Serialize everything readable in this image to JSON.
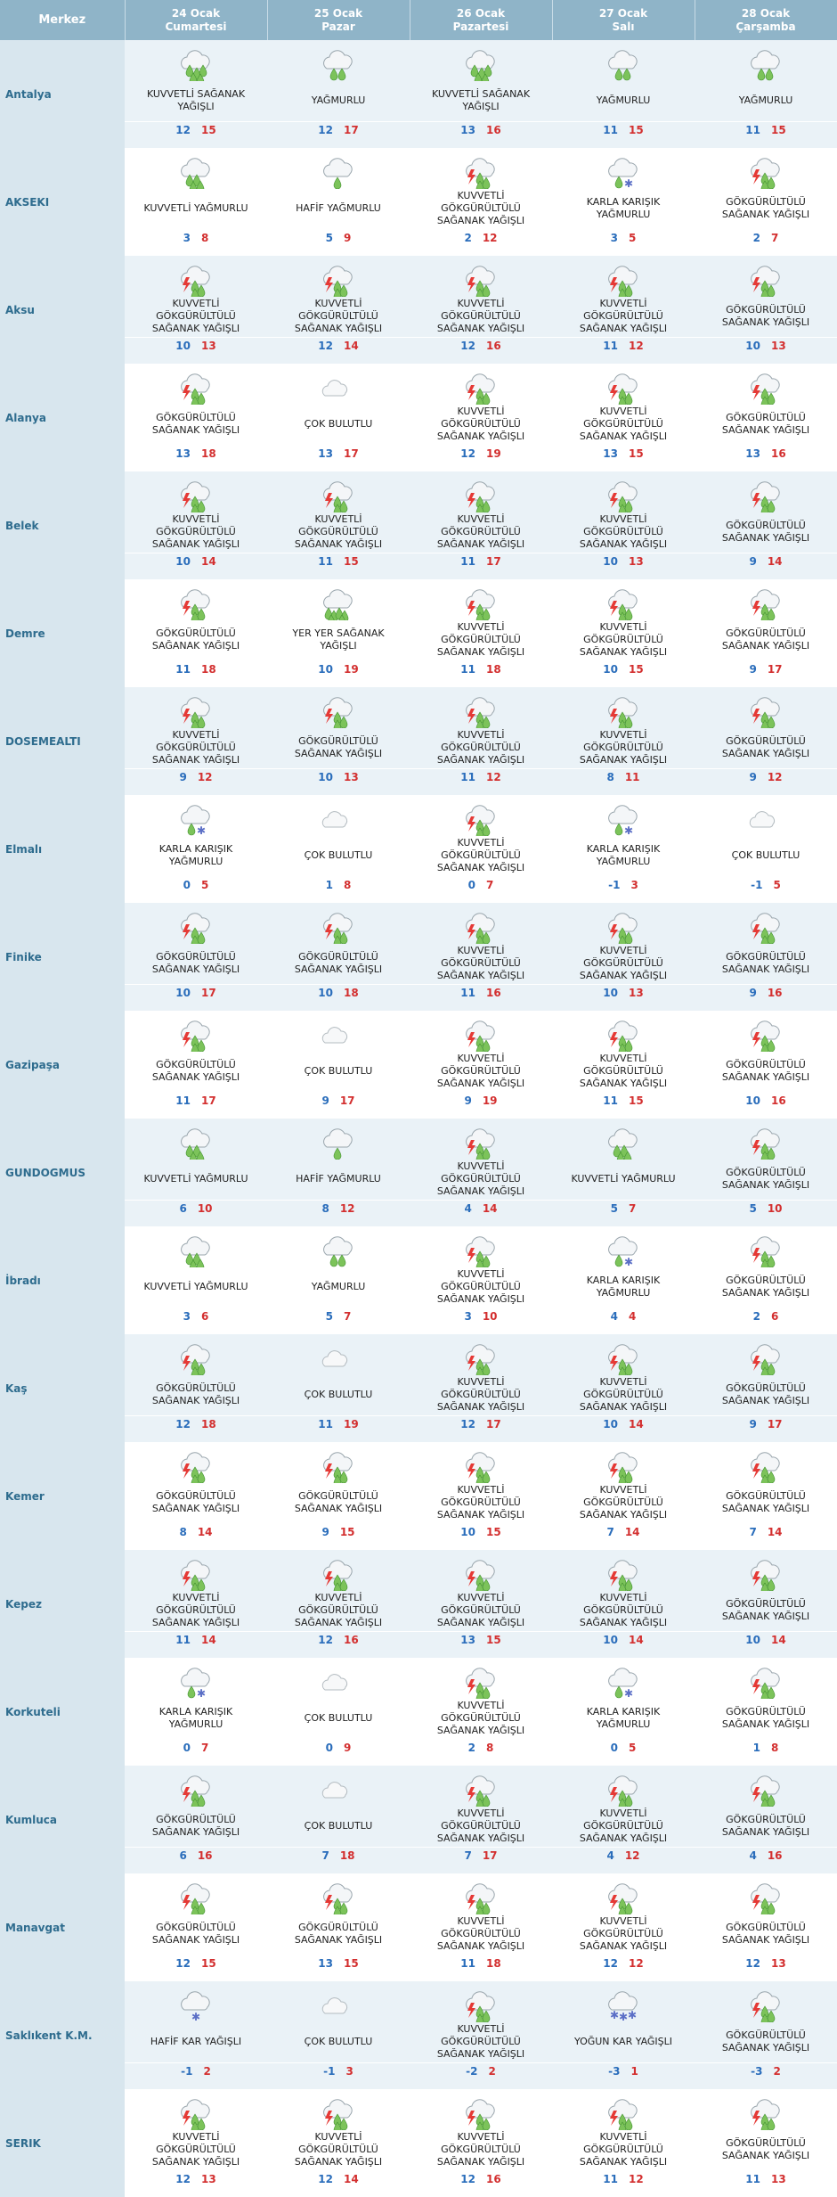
{
  "header": {
    "merkez": "Merkez",
    "days": [
      {
        "date": "24 Ocak",
        "weekday": "Cumartesi"
      },
      {
        "date": "25 Ocak",
        "weekday": "Pazar"
      },
      {
        "date": "26 Ocak",
        "weekday": "Pazartesi"
      },
      {
        "date": "27 Ocak",
        "weekday": "Salı"
      },
      {
        "date": "28 Ocak",
        "weekday": "Çarşamba"
      }
    ]
  },
  "rows": [
    {
      "city": "Antalya",
      "days": [
        {
          "icon": "heavy-shower-icon",
          "cond": "KUVVETLİ SAĞANAK YAĞIŞLI",
          "min": "12",
          "max": "15"
        },
        {
          "icon": "rain-icon",
          "cond": "YAĞMURLU",
          "min": "12",
          "max": "17"
        },
        {
          "icon": "heavy-shower-icon",
          "cond": "KUVVETLİ SAĞANAK YAĞIŞLI",
          "min": "13",
          "max": "16"
        },
        {
          "icon": "rain-icon",
          "cond": "YAĞMURLU",
          "min": "11",
          "max": "15"
        },
        {
          "icon": "rain-icon",
          "cond": "YAĞMURLU",
          "min": "11",
          "max": "15"
        }
      ]
    },
    {
      "city": "AKSEKI",
      "days": [
        {
          "icon": "heavy-rain-icon",
          "cond": "KUVVETLİ YAĞMURLU",
          "min": "3",
          "max": "8"
        },
        {
          "icon": "light-rain-icon",
          "cond": "HAFİF YAĞMURLU",
          "min": "5",
          "max": "9"
        },
        {
          "icon": "thunder-shower-icon",
          "cond": "KUVVETLİ GÖKGÜRÜLTÜLÜ SAĞANAK YAĞIŞLI",
          "min": "2",
          "max": "12"
        },
        {
          "icon": "sleet-icon",
          "cond": "KARLA KARIŞIK YAĞMURLU",
          "min": "3",
          "max": "5"
        },
        {
          "icon": "thunder-shower-icon",
          "cond": "GÖKGÜRÜLTÜLÜ SAĞANAK YAĞIŞLI",
          "min": "2",
          "max": "7"
        }
      ]
    },
    {
      "city": "Aksu",
      "days": [
        {
          "icon": "thunder-shower-icon",
          "cond": "KUVVETLİ GÖKGÜRÜLTÜLÜ SAĞANAK YAĞIŞLI",
          "min": "10",
          "max": "13"
        },
        {
          "icon": "thunder-shower-icon",
          "cond": "KUVVETLİ GÖKGÜRÜLTÜLÜ SAĞANAK YAĞIŞLI",
          "min": "12",
          "max": "14"
        },
        {
          "icon": "thunder-shower-icon",
          "cond": "KUVVETLİ GÖKGÜRÜLTÜLÜ SAĞANAK YAĞIŞLI",
          "min": "12",
          "max": "16"
        },
        {
          "icon": "thunder-shower-icon",
          "cond": "KUVVETLİ GÖKGÜRÜLTÜLÜ SAĞANAK YAĞIŞLI",
          "min": "11",
          "max": "12"
        },
        {
          "icon": "thunder-shower-icon",
          "cond": "GÖKGÜRÜLTÜLÜ SAĞANAK YAĞIŞLI",
          "min": "10",
          "max": "13"
        }
      ]
    },
    {
      "city": "Alanya",
      "days": [
        {
          "icon": "thunder-shower-icon",
          "cond": "GÖKGÜRÜLTÜLÜ SAĞANAK YAĞIŞLI",
          "min": "13",
          "max": "18"
        },
        {
          "icon": "cloudy-icon",
          "cond": "ÇOK BULUTLU",
          "min": "13",
          "max": "17"
        },
        {
          "icon": "thunder-shower-icon",
          "cond": "KUVVETLİ GÖKGÜRÜLTÜLÜ SAĞANAK YAĞIŞLI",
          "min": "12",
          "max": "19"
        },
        {
          "icon": "thunder-shower-icon",
          "cond": "KUVVETLİ GÖKGÜRÜLTÜLÜ SAĞANAK YAĞIŞLI",
          "min": "13",
          "max": "15"
        },
        {
          "icon": "thunder-shower-icon",
          "cond": "GÖKGÜRÜLTÜLÜ SAĞANAK YAĞIŞLI",
          "min": "13",
          "max": "16"
        }
      ]
    },
    {
      "city": "Belek",
      "days": [
        {
          "icon": "thunder-shower-icon",
          "cond": "KUVVETLİ GÖKGÜRÜLTÜLÜ SAĞANAK YAĞIŞLI",
          "min": "10",
          "max": "14"
        },
        {
          "icon": "thunder-shower-icon",
          "cond": "KUVVETLİ GÖKGÜRÜLTÜLÜ SAĞANAK YAĞIŞLI",
          "min": "11",
          "max": "15"
        },
        {
          "icon": "thunder-shower-icon",
          "cond": "KUVVETLİ GÖKGÜRÜLTÜLÜ SAĞANAK YAĞIŞLI",
          "min": "11",
          "max": "17"
        },
        {
          "icon": "thunder-shower-icon",
          "cond": "KUVVETLİ GÖKGÜRÜLTÜLÜ SAĞANAK YAĞIŞLI",
          "min": "10",
          "max": "13"
        },
        {
          "icon": "thunder-shower-icon",
          "cond": "GÖKGÜRÜLTÜLÜ SAĞANAK YAĞIŞLI",
          "min": "9",
          "max": "14"
        }
      ]
    },
    {
      "city": "Demre",
      "days": [
        {
          "icon": "thunder-shower-icon",
          "cond": "GÖKGÜRÜLTÜLÜ SAĞANAK YAĞIŞLI",
          "min": "11",
          "max": "18"
        },
        {
          "icon": "local-shower-icon",
          "cond": "YER YER SAĞANAK YAĞIŞLI",
          "min": "10",
          "max": "19"
        },
        {
          "icon": "thunder-shower-icon",
          "cond": "KUVVETLİ GÖKGÜRÜLTÜLÜ SAĞANAK YAĞIŞLI",
          "min": "11",
          "max": "18"
        },
        {
          "icon": "thunder-shower-icon",
          "cond": "KUVVETLİ GÖKGÜRÜLTÜLÜ SAĞANAK YAĞIŞLI",
          "min": "10",
          "max": "15"
        },
        {
          "icon": "thunder-shower-icon",
          "cond": "GÖKGÜRÜLTÜLÜ SAĞANAK YAĞIŞLI",
          "min": "9",
          "max": "17"
        }
      ]
    },
    {
      "city": "DOSEMEALTI",
      "days": [
        {
          "icon": "thunder-shower-icon",
          "cond": "KUVVETLİ GÖKGÜRÜLTÜLÜ SAĞANAK YAĞIŞLI",
          "min": "9",
          "max": "12"
        },
        {
          "icon": "thunder-shower-icon",
          "cond": "GÖKGÜRÜLTÜLÜ SAĞANAK YAĞIŞLI",
          "min": "10",
          "max": "13"
        },
        {
          "icon": "thunder-shower-icon",
          "cond": "KUVVETLİ GÖKGÜRÜLTÜLÜ SAĞANAK YAĞIŞLI",
          "min": "11",
          "max": "12"
        },
        {
          "icon": "thunder-shower-icon",
          "cond": "KUVVETLİ GÖKGÜRÜLTÜLÜ SAĞANAK YAĞIŞLI",
          "min": "8",
          "max": "11"
        },
        {
          "icon": "thunder-shower-icon",
          "cond": "GÖKGÜRÜLTÜLÜ SAĞANAK YAĞIŞLI",
          "min": "9",
          "max": "12"
        }
      ]
    },
    {
      "city": "Elmalı",
      "days": [
        {
          "icon": "sleet-icon",
          "cond": "KARLA KARIŞIK YAĞMURLU",
          "min": "0",
          "max": "5"
        },
        {
          "icon": "cloudy-icon",
          "cond": "ÇOK BULUTLU",
          "min": "1",
          "max": "8"
        },
        {
          "icon": "thunder-shower-icon",
          "cond": "KUVVETLİ GÖKGÜRÜLTÜLÜ SAĞANAK YAĞIŞLI",
          "min": "0",
          "max": "7"
        },
        {
          "icon": "sleet-icon",
          "cond": "KARLA KARIŞIK YAĞMURLU",
          "min": "-1",
          "max": "3"
        },
        {
          "icon": "cloudy-icon",
          "cond": "ÇOK BULUTLU",
          "min": "-1",
          "max": "5"
        }
      ]
    },
    {
      "city": "Finike",
      "days": [
        {
          "icon": "thunder-shower-icon",
          "cond": "GÖKGÜRÜLTÜLÜ SAĞANAK YAĞIŞLI",
          "min": "10",
          "max": "17"
        },
        {
          "icon": "thunder-shower-icon",
          "cond": "GÖKGÜRÜLTÜLÜ SAĞANAK YAĞIŞLI",
          "min": "10",
          "max": "18"
        },
        {
          "icon": "thunder-shower-icon",
          "cond": "KUVVETLİ GÖKGÜRÜLTÜLÜ SAĞANAK YAĞIŞLI",
          "min": "11",
          "max": "16"
        },
        {
          "icon": "thunder-shower-icon",
          "cond": "KUVVETLİ GÖKGÜRÜLTÜLÜ SAĞANAK YAĞIŞLI",
          "min": "10",
          "max": "13"
        },
        {
          "icon": "thunder-shower-icon",
          "cond": "GÖKGÜRÜLTÜLÜ SAĞANAK YAĞIŞLI",
          "min": "9",
          "max": "16"
        }
      ]
    },
    {
      "city": "Gazipaşa",
      "days": [
        {
          "icon": "thunder-shower-icon",
          "cond": "GÖKGÜRÜLTÜLÜ SAĞANAK YAĞIŞLI",
          "min": "11",
          "max": "17"
        },
        {
          "icon": "cloudy-icon",
          "cond": "ÇOK BULUTLU",
          "min": "9",
          "max": "17"
        },
        {
          "icon": "thunder-shower-icon",
          "cond": "KUVVETLİ GÖKGÜRÜLTÜLÜ SAĞANAK YAĞIŞLI",
          "min": "9",
          "max": "19"
        },
        {
          "icon": "thunder-shower-icon",
          "cond": "KUVVETLİ GÖKGÜRÜLTÜLÜ SAĞANAK YAĞIŞLI",
          "min": "11",
          "max": "15"
        },
        {
          "icon": "thunder-shower-icon",
          "cond": "GÖKGÜRÜLTÜLÜ SAĞANAK YAĞIŞLI",
          "min": "10",
          "max": "16"
        }
      ]
    },
    {
      "city": "GUNDOGMUS",
      "days": [
        {
          "icon": "heavy-rain-icon",
          "cond": "KUVVETLİ YAĞMURLU",
          "min": "6",
          "max": "10"
        },
        {
          "icon": "light-rain-icon",
          "cond": "HAFİF YAĞMURLU",
          "min": "8",
          "max": "12"
        },
        {
          "icon": "thunder-shower-icon",
          "cond": "KUVVETLİ GÖKGÜRÜLTÜLÜ SAĞANAK YAĞIŞLI",
          "min": "4",
          "max": "14"
        },
        {
          "icon": "heavy-rain-icon",
          "cond": "KUVVETLİ YAĞMURLU",
          "min": "5",
          "max": "7"
        },
        {
          "icon": "thunder-shower-icon",
          "cond": "GÖKGÜRÜLTÜLÜ SAĞANAK YAĞIŞLI",
          "min": "5",
          "max": "10"
        }
      ]
    },
    {
      "city": "İbradı",
      "days": [
        {
          "icon": "heavy-rain-icon",
          "cond": "KUVVETLİ YAĞMURLU",
          "min": "3",
          "max": "6"
        },
        {
          "icon": "rain-icon",
          "cond": "YAĞMURLU",
          "min": "5",
          "max": "7"
        },
        {
          "icon": "thunder-shower-icon",
          "cond": "KUVVETLİ GÖKGÜRÜLTÜLÜ SAĞANAK YAĞIŞLI",
          "min": "3",
          "max": "10"
        },
        {
          "icon": "sleet-icon",
          "cond": "KARLA KARIŞIK YAĞMURLU",
          "min": "4",
          "max": "4"
        },
        {
          "icon": "thunder-shower-icon",
          "cond": "GÖKGÜRÜLTÜLÜ SAĞANAK YAĞIŞLI",
          "min": "2",
          "max": "6"
        }
      ]
    },
    {
      "city": "Kaş",
      "days": [
        {
          "icon": "thunder-shower-icon",
          "cond": "GÖKGÜRÜLTÜLÜ SAĞANAK YAĞIŞLI",
          "min": "12",
          "max": "18"
        },
        {
          "icon": "cloudy-icon",
          "cond": "ÇOK BULUTLU",
          "min": "11",
          "max": "19"
        },
        {
          "icon": "thunder-shower-icon",
          "cond": "KUVVETLİ GÖKGÜRÜLTÜLÜ SAĞANAK YAĞIŞLI",
          "min": "12",
          "max": "17"
        },
        {
          "icon": "thunder-shower-icon",
          "cond": "KUVVETLİ GÖKGÜRÜLTÜLÜ SAĞANAK YAĞIŞLI",
          "min": "10",
          "max": "14"
        },
        {
          "icon": "thunder-shower-icon",
          "cond": "GÖKGÜRÜLTÜLÜ SAĞANAK YAĞIŞLI",
          "min": "9",
          "max": "17"
        }
      ]
    },
    {
      "city": "Kemer",
      "days": [
        {
          "icon": "thunder-shower-icon",
          "cond": "GÖKGÜRÜLTÜLÜ SAĞANAK YAĞIŞLI",
          "min": "8",
          "max": "14"
        },
        {
          "icon": "thunder-shower-icon",
          "cond": "GÖKGÜRÜLTÜLÜ SAĞANAK YAĞIŞLI",
          "min": "9",
          "max": "15"
        },
        {
          "icon": "thunder-shower-icon",
          "cond": "KUVVETLİ GÖKGÜRÜLTÜLÜ SAĞANAK YAĞIŞLI",
          "min": "10",
          "max": "15"
        },
        {
          "icon": "thunder-shower-icon",
          "cond": "KUVVETLİ GÖKGÜRÜLTÜLÜ SAĞANAK YAĞIŞLI",
          "min": "7",
          "max": "14"
        },
        {
          "icon": "thunder-shower-icon",
          "cond": "GÖKGÜRÜLTÜLÜ SAĞANAK YAĞIŞLI",
          "min": "7",
          "max": "14"
        }
      ]
    },
    {
      "city": "Kepez",
      "days": [
        {
          "icon": "thunder-shower-icon",
          "cond": "KUVVETLİ GÖKGÜRÜLTÜLÜ SAĞANAK YAĞIŞLI",
          "min": "11",
          "max": "14"
        },
        {
          "icon": "thunder-shower-icon",
          "cond": "KUVVETLİ GÖKGÜRÜLTÜLÜ SAĞANAK YAĞIŞLI",
          "min": "12",
          "max": "16"
        },
        {
          "icon": "thunder-shower-icon",
          "cond": "KUVVETLİ GÖKGÜRÜLTÜLÜ SAĞANAK YAĞIŞLI",
          "min": "13",
          "max": "15"
        },
        {
          "icon": "thunder-shower-icon",
          "cond": "KUVVETLİ GÖKGÜRÜLTÜLÜ SAĞANAK YAĞIŞLI",
          "min": "10",
          "max": "14"
        },
        {
          "icon": "thunder-shower-icon",
          "cond": "GÖKGÜRÜLTÜLÜ SAĞANAK YAĞIŞLI",
          "min": "10",
          "max": "14"
        }
      ]
    },
    {
      "city": "Korkuteli",
      "days": [
        {
          "icon": "sleet-icon",
          "cond": "KARLA KARIŞIK YAĞMURLU",
          "min": "0",
          "max": "7"
        },
        {
          "icon": "cloudy-icon",
          "cond": "ÇOK BULUTLU",
          "min": "0",
          "max": "9"
        },
        {
          "icon": "thunder-shower-icon",
          "cond": "KUVVETLİ GÖKGÜRÜLTÜLÜ SAĞANAK YAĞIŞLI",
          "min": "2",
          "max": "8"
        },
        {
          "icon": "sleet-icon",
          "cond": "KARLA KARIŞIK YAĞMURLU",
          "min": "0",
          "max": "5"
        },
        {
          "icon": "thunder-shower-icon",
          "cond": "GÖKGÜRÜLTÜLÜ SAĞANAK YAĞIŞLI",
          "min": "1",
          "max": "8"
        }
      ]
    },
    {
      "city": "Kumluca",
      "days": [
        {
          "icon": "thunder-shower-icon",
          "cond": "GÖKGÜRÜLTÜLÜ SAĞANAK YAĞIŞLI",
          "min": "6",
          "max": "16"
        },
        {
          "icon": "cloudy-icon",
          "cond": "ÇOK BULUTLU",
          "min": "7",
          "max": "18"
        },
        {
          "icon": "thunder-shower-icon",
          "cond": "KUVVETLİ GÖKGÜRÜLTÜLÜ SAĞANAK YAĞIŞLI",
          "min": "7",
          "max": "17"
        },
        {
          "icon": "thunder-shower-icon",
          "cond": "KUVVETLİ GÖKGÜRÜLTÜLÜ SAĞANAK YAĞIŞLI",
          "min": "4",
          "max": "12"
        },
        {
          "icon": "thunder-shower-icon",
          "cond": "GÖKGÜRÜLTÜLÜ SAĞANAK YAĞIŞLI",
          "min": "4",
          "max": "16"
        }
      ]
    },
    {
      "city": "Manavgat",
      "days": [
        {
          "icon": "thunder-shower-icon",
          "cond": "GÖKGÜRÜLTÜLÜ SAĞANAK YAĞIŞLI",
          "min": "12",
          "max": "15"
        },
        {
          "icon": "thunder-shower-icon",
          "cond": "GÖKGÜRÜLTÜLÜ SAĞANAK YAĞIŞLI",
          "min": "13",
          "max": "15"
        },
        {
          "icon": "thunder-shower-icon",
          "cond": "KUVVETLİ GÖKGÜRÜLTÜLÜ SAĞANAK YAĞIŞLI",
          "min": "11",
          "max": "18"
        },
        {
          "icon": "thunder-shower-icon",
          "cond": "KUVVETLİ GÖKGÜRÜLTÜLÜ SAĞANAK YAĞIŞLI",
          "min": "12",
          "max": "12"
        },
        {
          "icon": "thunder-shower-icon",
          "cond": "GÖKGÜRÜLTÜLÜ SAĞANAK YAĞIŞLI",
          "min": "12",
          "max": "13"
        }
      ]
    },
    {
      "city": "Saklıkent K.M.",
      "days": [
        {
          "icon": "light-snow-icon",
          "cond": "HAFİF KAR YAĞIŞLI",
          "min": "-1",
          "max": "2"
        },
        {
          "icon": "cloudy-icon",
          "cond": "ÇOK BULUTLU",
          "min": "-1",
          "max": "3"
        },
        {
          "icon": "thunder-shower-icon",
          "cond": "KUVVETLİ GÖKGÜRÜLTÜLÜ SAĞANAK YAĞIŞLI",
          "min": "-2",
          "max": "2"
        },
        {
          "icon": "heavy-snow-icon",
          "cond": "YOĞUN KAR YAĞIŞLI",
          "min": "-3",
          "max": "1"
        },
        {
          "icon": "thunder-shower-icon",
          "cond": "GÖKGÜRÜLTÜLÜ SAĞANAK YAĞIŞLI",
          "min": "-3",
          "max": "2"
        }
      ]
    },
    {
      "city": "SERIK",
      "days": [
        {
          "icon": "thunder-shower-icon",
          "cond": "KUVVETLİ GÖKGÜRÜLTÜLÜ SAĞANAK YAĞIŞLI",
          "min": "12",
          "max": "13"
        },
        {
          "icon": "thunder-shower-icon",
          "cond": "KUVVETLİ GÖKGÜRÜLTÜLÜ SAĞANAK YAĞIŞLI",
          "min": "12",
          "max": "14"
        },
        {
          "icon": "thunder-shower-icon",
          "cond": "KUVVETLİ GÖKGÜRÜLTÜLÜ SAĞANAK YAĞIŞLI",
          "min": "12",
          "max": "16"
        },
        {
          "icon": "thunder-shower-icon",
          "cond": "KUVVETLİ GÖKGÜRÜLTÜLÜ SAĞANAK YAĞIŞLI",
          "min": "11",
          "max": "12"
        },
        {
          "icon": "thunder-shower-icon",
          "cond": "GÖKGÜRÜLTÜLÜ SAĞANAK YAĞIŞLI",
          "min": "11",
          "max": "13"
        }
      ]
    }
  ]
}
